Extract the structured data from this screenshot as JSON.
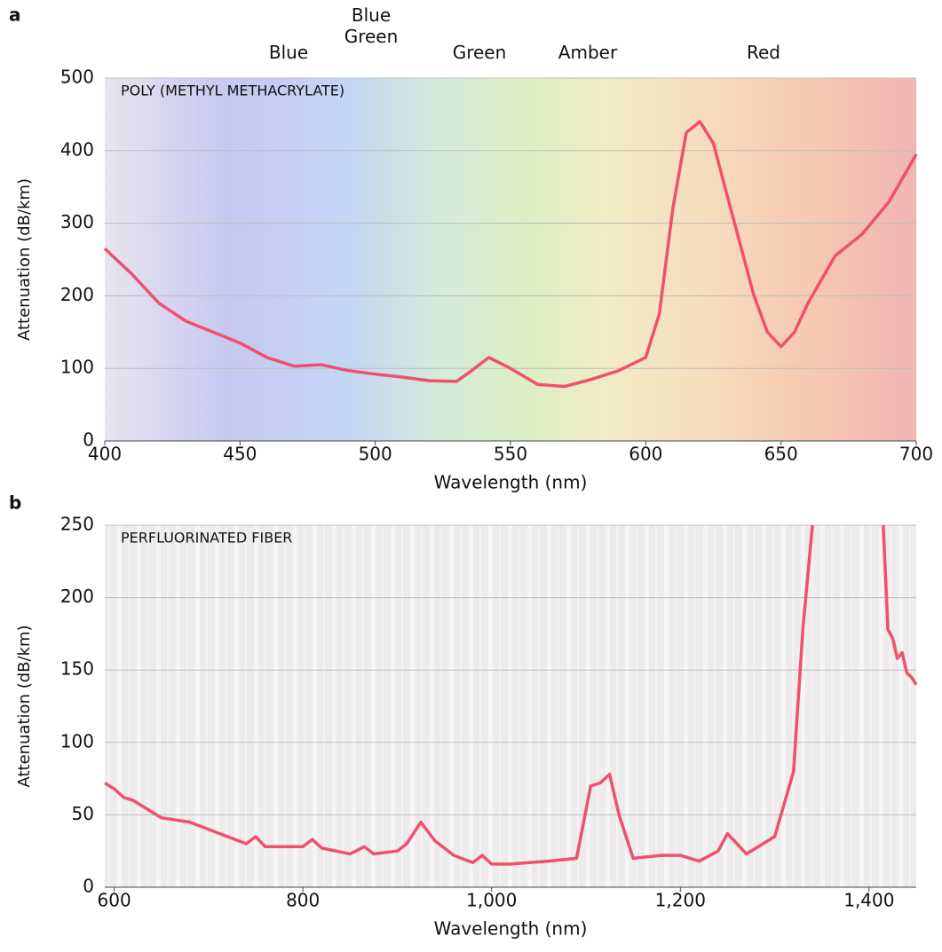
{
  "chart_data": [
    {
      "type": "line",
      "panel_label": "a",
      "annotation": "POLY (METHYL METHACRYLATE)",
      "band_labels": [
        "Blue",
        "Blue Green",
        "Green",
        "Amber",
        "Red"
      ],
      "x_label": "Wavelength (nm)",
      "y_label": "Attenuation (dB/km)",
      "xlim": [
        400,
        700
      ],
      "xticks": [
        400,
        450,
        500,
        550,
        600,
        650,
        700
      ],
      "ylim": [
        0,
        500
      ],
      "yticks": [
        0,
        100,
        200,
        300,
        400,
        500
      ],
      "series": [
        {
          "color": "#f0506e",
          "x": [
            400,
            410,
            420,
            430,
            440,
            450,
            460,
            470,
            480,
            490,
            500,
            510,
            520,
            530,
            535,
            542,
            550,
            560,
            570,
            580,
            590,
            600,
            605,
            610,
            615,
            620,
            625,
            630,
            640,
            645,
            650,
            655,
            660,
            670,
            680,
            690,
            700
          ],
          "values": [
            265,
            230,
            190,
            165,
            150,
            135,
            115,
            103,
            105,
            97,
            92,
            88,
            83,
            82,
            95,
            115,
            100,
            78,
            75,
            85,
            97,
            115,
            175,
            320,
            425,
            440,
            410,
            340,
            200,
            150,
            130,
            150,
            190,
            255,
            285,
            330,
            395
          ]
        }
      ]
    },
    {
      "type": "line",
      "panel_label": "b",
      "annotation": "PERFLUORINATED FIBER",
      "x_label": "Wavelength (nm)",
      "y_label": "Attenuation (dB/km)",
      "xlim": [
        590,
        1450
      ],
      "xticks": [
        600,
        800,
        {
          "value": 1000,
          "label": "1,000"
        },
        {
          "value": 1200,
          "label": "1,200"
        },
        {
          "value": 1400,
          "label": "1,400"
        }
      ],
      "ylim": [
        0,
        250
      ],
      "yticks": [
        0,
        50,
        100,
        150,
        200,
        250
      ],
      "series": [
        {
          "color": "#f0506e",
          "x": [
            590,
            600,
            610,
            620,
            650,
            680,
            720,
            740,
            750,
            760,
            800,
            810,
            820,
            850,
            865,
            875,
            900,
            910,
            925,
            940,
            960,
            980,
            990,
            1000,
            1020,
            1060,
            1090,
            1105,
            1115,
            1125,
            1135,
            1150,
            1180,
            1200,
            1220,
            1240,
            1250,
            1260,
            1270,
            1300,
            1320,
            1330,
            1340,
            1380,
            1415,
            1420,
            1425,
            1430,
            1435,
            1440,
            1445,
            1450
          ],
          "values": [
            72,
            68,
            62,
            60,
            48,
            45,
            35,
            30,
            35,
            28,
            28,
            33,
            27,
            23,
            28,
            23,
            25,
            30,
            45,
            32,
            22,
            17,
            22,
            16,
            16,
            18,
            20,
            70,
            72,
            78,
            50,
            20,
            22,
            22,
            18,
            25,
            37,
            30,
            23,
            35,
            80,
            180,
            250,
            null,
            250,
            178,
            172,
            158,
            162,
            148,
            145,
            140
          ]
        }
      ]
    }
  ]
}
